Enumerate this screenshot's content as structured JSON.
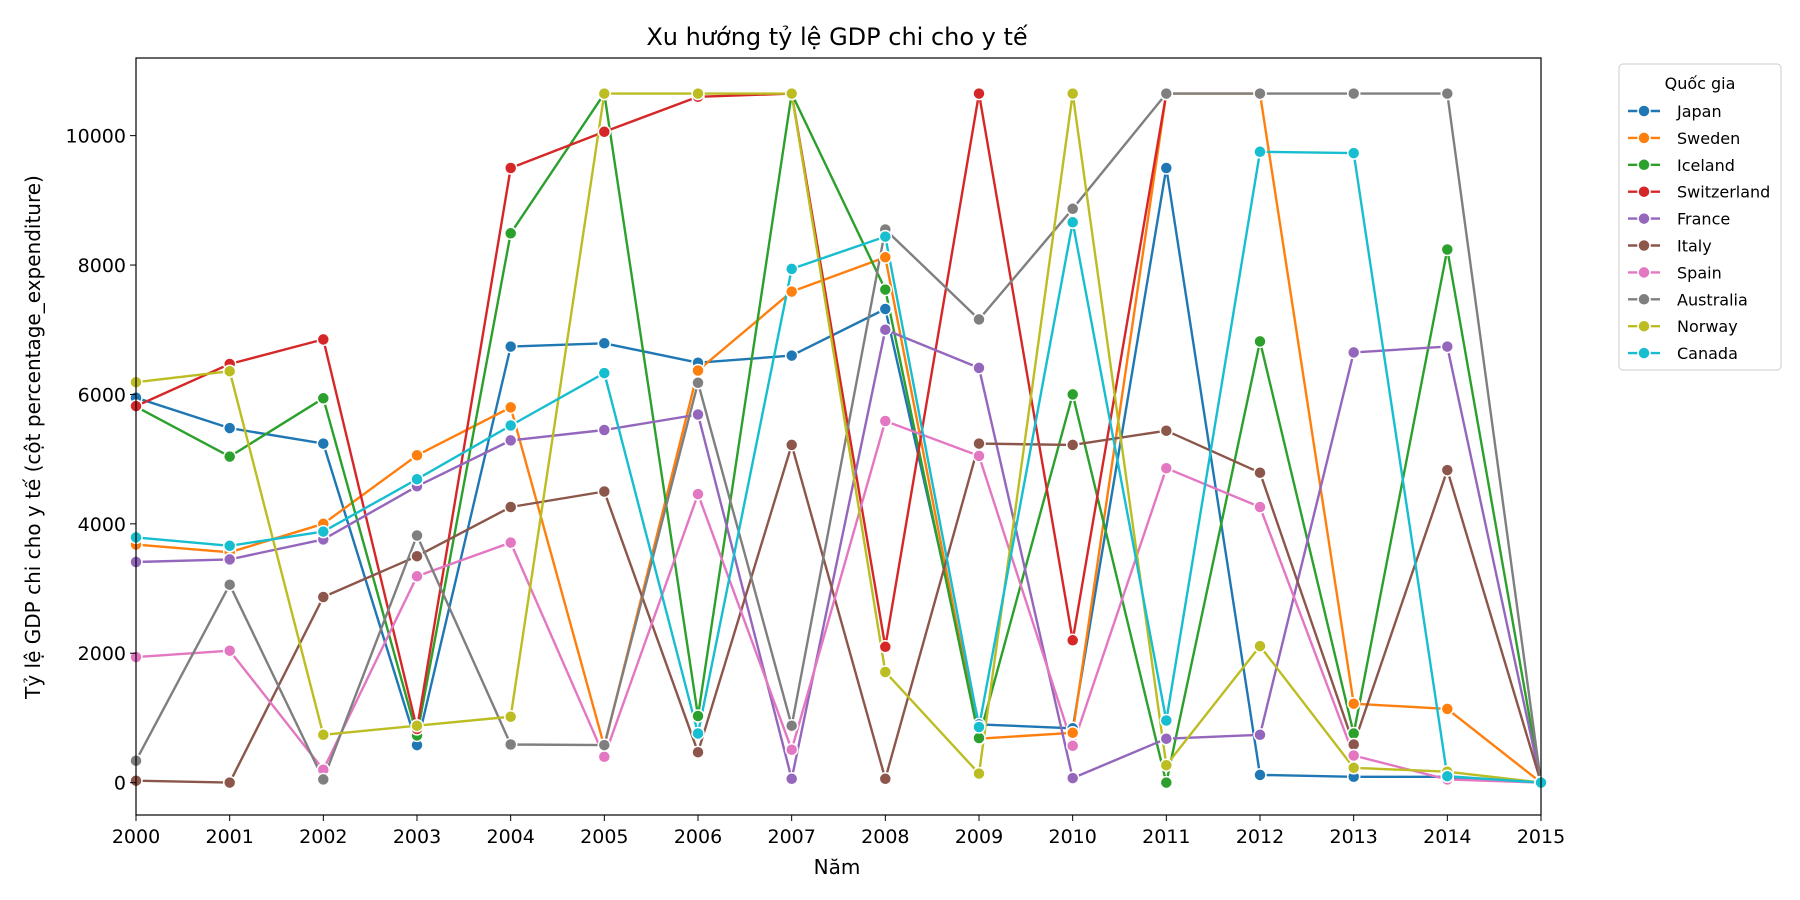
{
  "chart_data": {
    "type": "line",
    "title": "Xu hướng tỷ lệ GDP chi cho y tế",
    "xlabel": "Năm",
    "ylabel": "Tỷ lệ GDP chi cho y tế (cột percentage_expenditure)",
    "xlim": [
      2000,
      2015
    ],
    "ylim": [
      -500,
      11200
    ],
    "x": [
      2000,
      2001,
      2002,
      2003,
      2004,
      2005,
      2006,
      2007,
      2008,
      2009,
      2010,
      2011,
      2012,
      2013,
      2014,
      2015
    ],
    "x_tick_labels": [
      "2000",
      "2001",
      "2002",
      "2003",
      "2004",
      "2005",
      "2006",
      "2007",
      "2008",
      "2009",
      "2010",
      "2011",
      "2012",
      "2013",
      "2014",
      "2015"
    ],
    "y_ticks": [
      0,
      2000,
      4000,
      6000,
      8000,
      10000
    ],
    "y_tick_labels": [
      "0",
      "2000",
      "4000",
      "6000",
      "8000",
      "10000"
    ],
    "legend_title": "Quốc gia",
    "legend_position": "upper right, outside plot",
    "grid": false,
    "series": [
      {
        "name": "Japan",
        "color": "#1f77b4",
        "values": [
          5950,
          5480,
          5240,
          580,
          6740,
          6790,
          6490,
          6600,
          7320,
          900,
          840,
          9500,
          120,
          90,
          90,
          0
        ]
      },
      {
        "name": "Sweden",
        "color": "#ff7f0e",
        "values": [
          3680,
          3560,
          4000,
          5060,
          5800,
          560,
          6370,
          7590,
          8120,
          680,
          770,
          10650,
          10650,
          1220,
          1140,
          0
        ]
      },
      {
        "name": "Iceland",
        "color": "#2ca02c",
        "values": [
          5810,
          5040,
          5940,
          730,
          8490,
          10650,
          1030,
          10650,
          7620,
          690,
          6000,
          0,
          6820,
          760,
          8240,
          0
        ]
      },
      {
        "name": "Switzerland",
        "color": "#d62728",
        "values": [
          5820,
          6470,
          6850,
          830,
          9500,
          10060,
          10600,
          10650,
          2100,
          10650,
          2200,
          10650,
          null,
          null,
          null,
          null
        ]
      },
      {
        "name": "France",
        "color": "#9467bd",
        "values": [
          3410,
          3450,
          3760,
          4580,
          5290,
          5450,
          5690,
          60,
          7000,
          6410,
          70,
          680,
          740,
          6650,
          6740,
          0
        ]
      },
      {
        "name": "Italy",
        "color": "#8c564b",
        "values": [
          30,
          0,
          2870,
          3500,
          4260,
          4500,
          470,
          5220,
          60,
          5240,
          5220,
          5440,
          4790,
          590,
          4830,
          0
        ]
      },
      {
        "name": "Spain",
        "color": "#e377c2",
        "values": [
          1940,
          2040,
          200,
          3190,
          3710,
          400,
          4460,
          510,
          5590,
          5050,
          570,
          4860,
          4260,
          420,
          50,
          0
        ]
      },
      {
        "name": "Australia",
        "color": "#7f7f7f",
        "values": [
          340,
          3060,
          50,
          3820,
          590,
          580,
          6180,
          880,
          8550,
          7160,
          8870,
          10650,
          10650,
          10650,
          10650,
          0
        ]
      },
      {
        "name": "Norway",
        "color": "#bcbd22",
        "values": [
          6190,
          6360,
          740,
          880,
          1020,
          10650,
          10650,
          10650,
          1710,
          140,
          10650,
          270,
          2110,
          230,
          170,
          0
        ]
      },
      {
        "name": "Canada",
        "color": "#17becf",
        "values": [
          3790,
          3660,
          3880,
          4690,
          5520,
          6330,
          760,
          7940,
          8440,
          860,
          8660,
          960,
          9750,
          9730,
          100,
          0
        ]
      }
    ]
  }
}
